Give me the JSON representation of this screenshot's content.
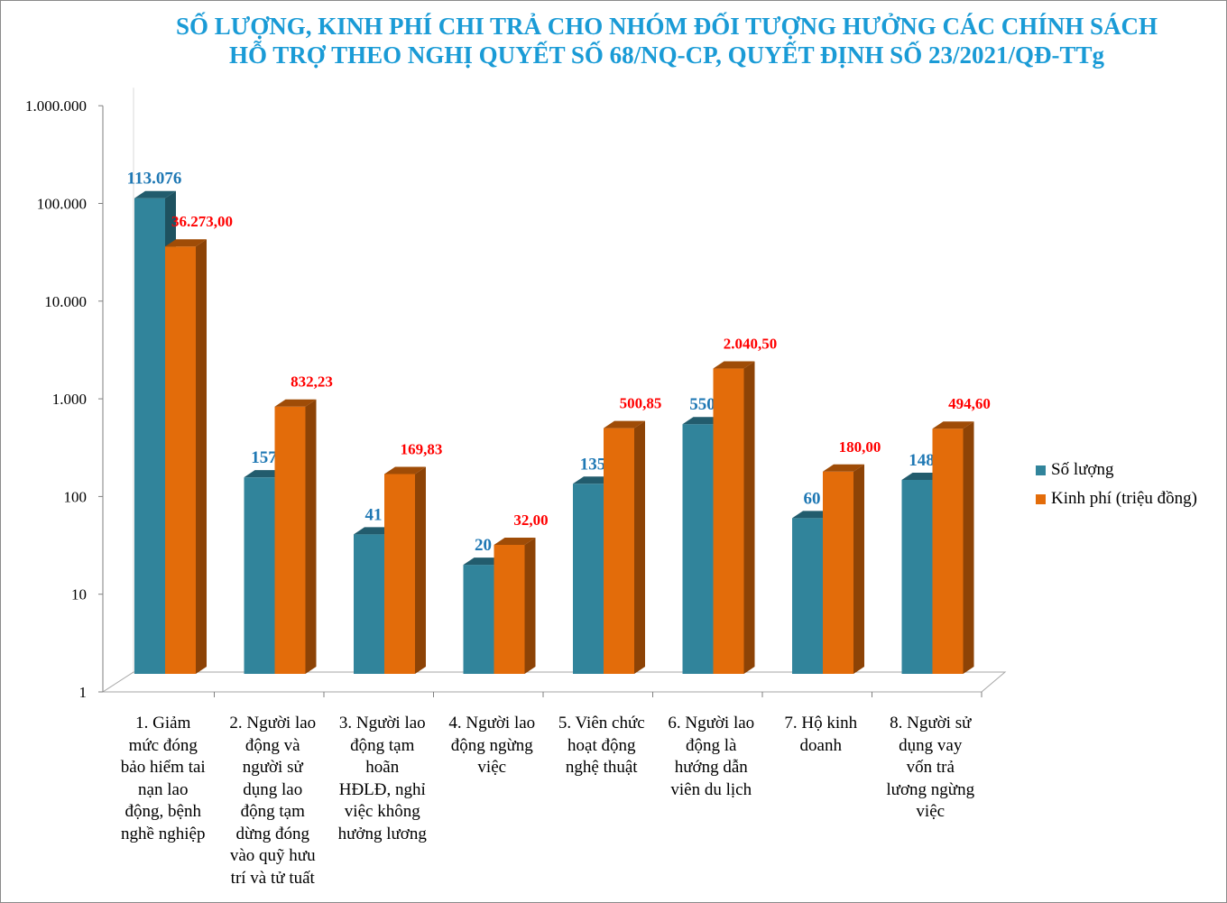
{
  "chart_data": {
    "type": "bar",
    "title": [
      "SỐ LƯỢNG, KINH PHÍ CHI TRẢ CHO NHÓM ĐỐI TƯỢNG HƯỞNG CÁC CHÍNH SÁCH",
      "HỖ TRỢ THEO NGHỊ QUYẾT SỐ 68/NQ-CP, QUYẾT ĐỊNH SỐ 23/2021/QĐ-TTg"
    ],
    "y_scale": "log",
    "ylim": [
      1,
      1000000
    ],
    "yticks": [
      1,
      10,
      100,
      1000,
      10000,
      100000,
      1000000
    ],
    "ytick_labels": [
      "1",
      "10",
      "100",
      "1.000",
      "10.000",
      "100.000",
      "1.000.000"
    ],
    "categories": [
      [
        "1. Giảm",
        "mức đóng",
        "bảo hiểm tai",
        "nạn lao",
        "động, bệnh",
        "nghề nghiệp"
      ],
      [
        "2. Người lao",
        "động và",
        "người sử",
        "dụng lao",
        "động tạm",
        "dừng đóng",
        "vào quỹ hưu",
        "trí và tử tuất"
      ],
      [
        "3. Người lao",
        "động tạm",
        "hoãn",
        "HĐLĐ, nghỉ",
        "việc không",
        "hưởng lương"
      ],
      [
        "4. Người lao",
        "động ngừng",
        "việc"
      ],
      [
        "5. Viên chức",
        "hoạt động",
        "nghệ thuật"
      ],
      [
        "6. Người lao",
        "động là",
        "hướng dẫn",
        "viên du lịch"
      ],
      [
        "7. Hộ kinh",
        "doanh"
      ],
      [
        "8. Người sử",
        "dụng vay",
        "vốn trả",
        "lương ngừng",
        "việc"
      ]
    ],
    "series": [
      {
        "name": "Số lượng",
        "color": "#31849b",
        "label_color": "#1f78b4",
        "values": [
          113076,
          157,
          41,
          20,
          135,
          550,
          60,
          148
        ],
        "labels": [
          "113.076",
          "157",
          "41",
          "20",
          "135",
          "550",
          "60",
          "148"
        ]
      },
      {
        "name": "Kinh phí (triệu đồng)",
        "color": "#e36c0a",
        "label_color": "#ff0000",
        "values": [
          36273.0,
          832.23,
          169.83,
          32.0,
          500.85,
          2040.5,
          180.0,
          494.6
        ],
        "labels": [
          "36.273,00",
          "832,23",
          "169,83",
          "32,00",
          "500,85",
          "2.040,50",
          "180,00",
          "494,60"
        ]
      }
    ],
    "legend_position": "right",
    "grid": false
  }
}
